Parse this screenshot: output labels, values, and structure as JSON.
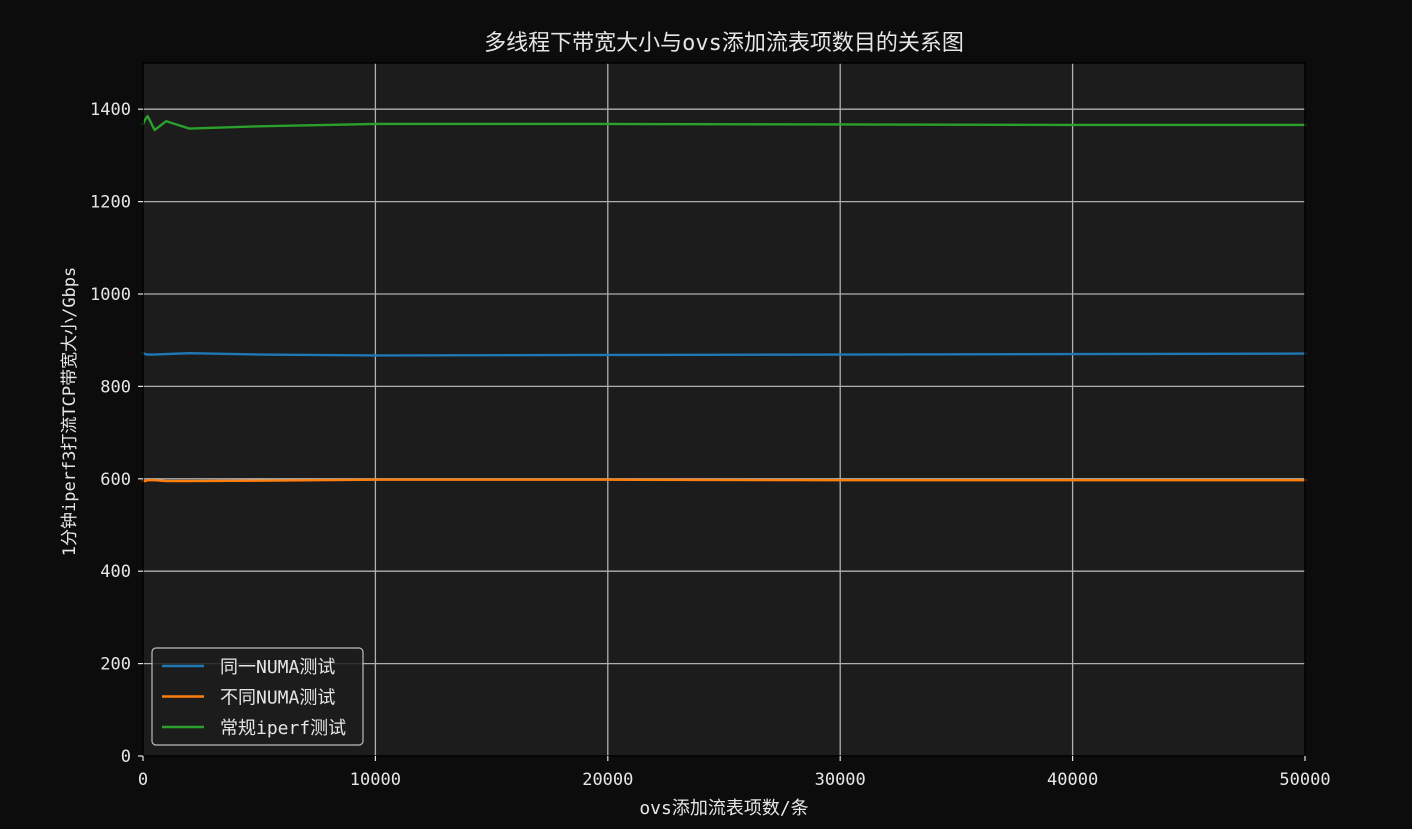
{
  "chart_data": {
    "type": "line",
    "title": "多线程下带宽大小与ovs添加流表项数目的关系图",
    "xlabel": "ovs添加流表项数/条",
    "ylabel": "1分钟iperf3打流TCP带宽大小/Gbps",
    "xlim": [
      0,
      50000
    ],
    "ylim": [
      0,
      1500
    ],
    "xticks": [
      0,
      10000,
      20000,
      30000,
      40000,
      50000
    ],
    "yticks": [
      0,
      200,
      400,
      600,
      800,
      1000,
      1200,
      1400
    ],
    "grid": true,
    "legend_position": "lower-left",
    "series": [
      {
        "name": "同一NUMA测试",
        "color": "#1f77b4",
        "x": [
          0,
          100,
          200,
          500,
          1000,
          2000,
          5000,
          10000,
          20000,
          30000,
          40000,
          50000
        ],
        "y": [
          872,
          870,
          869,
          869,
          870,
          872,
          869,
          867,
          868,
          869,
          870,
          871
        ]
      },
      {
        "name": "不同NUMA测试",
        "color": "#ff7f0e",
        "x": [
          0,
          100,
          200,
          500,
          1000,
          2000,
          5000,
          10000,
          20000,
          30000,
          40000,
          50000
        ],
        "y": [
          596,
          595,
          597,
          597,
          595,
          595,
          596,
          598,
          598,
          597,
          597,
          597
        ]
      },
      {
        "name": "常规iperf测试",
        "color": "#2ca02c",
        "x": [
          0,
          100,
          200,
          500,
          1000,
          2000,
          5000,
          10000,
          20000,
          30000,
          40000,
          50000
        ],
        "y": [
          1368,
          1378,
          1385,
          1355,
          1374,
          1358,
          1363,
          1368,
          1368,
          1367,
          1366,
          1366
        ]
      }
    ]
  },
  "colors": {
    "figure_background": "#0c0c0c",
    "plot_background": "#1c1c1c",
    "grid": "#b0b0b0",
    "text": "#e6e6e6",
    "legend_border": "#bdbdbd"
  }
}
